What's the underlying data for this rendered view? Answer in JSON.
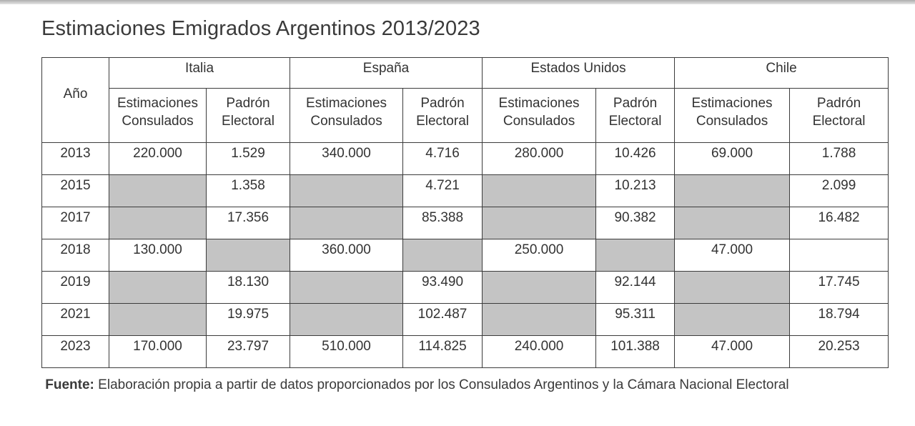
{
  "title": "Estimaciones Emigrados Argentinos 2013/2023",
  "table": {
    "year_header": "Año",
    "countries": [
      "Italia",
      "España",
      "Estados Unidos",
      "Chile"
    ],
    "sub_headers": [
      "Estimaciones Consulados",
      "Padrón Electoral"
    ],
    "rows": [
      {
        "year": "2013",
        "cells": [
          "220.000",
          "1.529",
          "340.000",
          "4.716",
          "280.000",
          "10.426",
          "69.000",
          "1.788"
        ]
      },
      {
        "year": "2015",
        "cells": [
          "",
          "1.358",
          "",
          "4.721",
          "",
          "10.213",
          "",
          "2.099"
        ]
      },
      {
        "year": "2017",
        "cells": [
          "",
          "17.356",
          "",
          "85.388",
          "",
          "90.382",
          "",
          "16.482"
        ]
      },
      {
        "year": "2018",
        "cells": [
          "130.000",
          "",
          "360.000",
          "",
          "250.000",
          "",
          "47.000",
          ""
        ]
      },
      {
        "year": "2019",
        "cells": [
          "",
          "18.130",
          "",
          "93.490",
          "",
          "92.144",
          "",
          "17.745"
        ]
      },
      {
        "year": "2021",
        "cells": [
          "",
          "19.975",
          "",
          "102.487",
          "",
          "95.311",
          "",
          "18.794"
        ]
      },
      {
        "year": "2023",
        "cells": [
          "170.000",
          "23.797",
          "510.000",
          "114.825",
          "240.000",
          "101.388",
          "47.000",
          "20.253"
        ]
      }
    ],
    "shaded": [
      [
        false,
        false,
        false,
        false,
        false,
        false,
        false,
        false
      ],
      [
        true,
        false,
        true,
        false,
        true,
        false,
        true,
        false
      ],
      [
        true,
        false,
        true,
        false,
        true,
        false,
        true,
        false
      ],
      [
        false,
        true,
        false,
        true,
        false,
        true,
        false,
        false
      ],
      [
        true,
        false,
        true,
        false,
        true,
        false,
        true,
        false
      ],
      [
        true,
        false,
        true,
        false,
        true,
        false,
        true,
        false
      ],
      [
        false,
        false,
        false,
        false,
        false,
        false,
        false,
        false
      ]
    ],
    "shade_color": "#c4c4c4"
  },
  "source": {
    "label": "Fuente:",
    "text": "Elaboración propia a partir de datos proporcionados por los Consulados Argentinos y la Cámara Nacional Electoral"
  }
}
